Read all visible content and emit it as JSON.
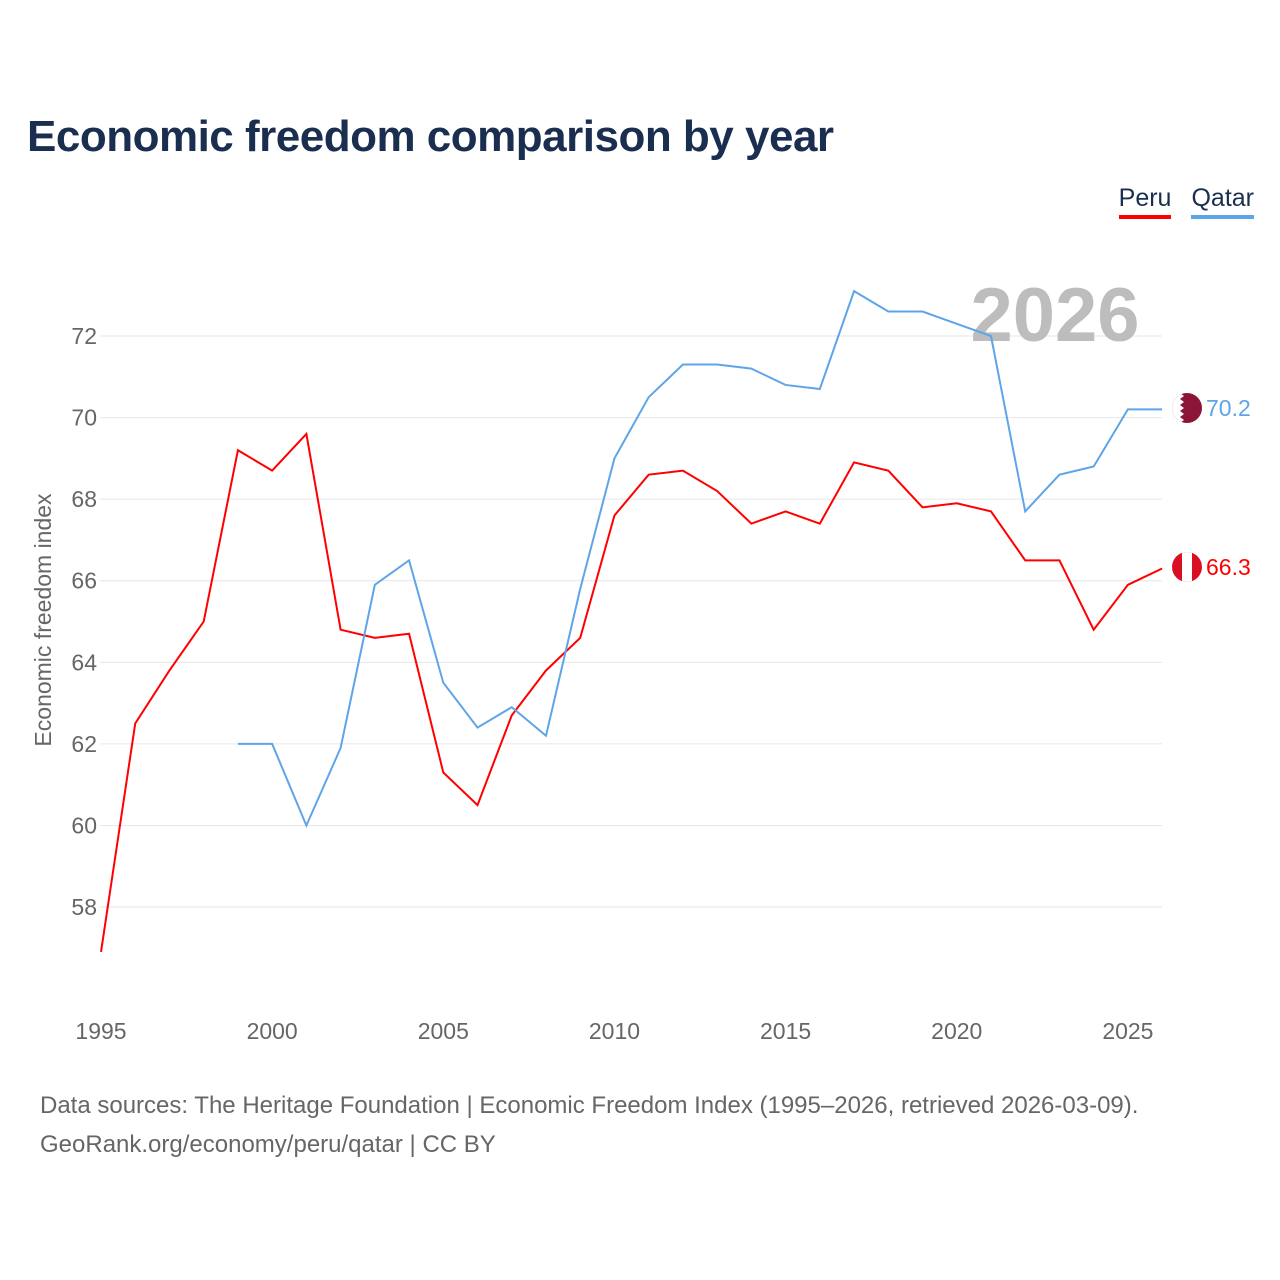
{
  "title": "Economic freedom comparison by year",
  "footer": {
    "line1": "Data sources: The Heritage Foundation | Economic Freedom Index (1995–2026, retrieved 2026-03-09).",
    "line2": "GeoRank.org/economy/peru/qatar | CC BY"
  },
  "chart_data": {
    "type": "line",
    "title": "Economic freedom comparison by year",
    "xlabel": "",
    "ylabel": "Economic freedom index",
    "watermark_year": "2026",
    "xlim": [
      1995,
      2026
    ],
    "ylim": [
      56.9,
      73.1
    ],
    "x_ticks": [
      1995,
      2000,
      2005,
      2010,
      2015,
      2020,
      2025
    ],
    "y_ticks": [
      58,
      60,
      62,
      64,
      66,
      68,
      70,
      72
    ],
    "grid": true,
    "legend_position": "top-right",
    "series": [
      {
        "name": "Peru",
        "color": "#ff0000",
        "end_label": "66.3",
        "x": [
          1995,
          1996,
          1997,
          1998,
          1999,
          2000,
          2001,
          2002,
          2003,
          2004,
          2005,
          2006,
          2007,
          2008,
          2009,
          2010,
          2011,
          2012,
          2013,
          2014,
          2015,
          2016,
          2017,
          2018,
          2019,
          2020,
          2021,
          2022,
          2023,
          2024,
          2025,
          2026
        ],
        "values": [
          56.9,
          62.5,
          63.8,
          65.0,
          69.2,
          68.7,
          69.6,
          64.8,
          64.6,
          64.7,
          61.3,
          60.5,
          62.7,
          63.8,
          64.6,
          67.6,
          68.6,
          68.7,
          68.2,
          67.4,
          67.7,
          67.4,
          68.9,
          68.7,
          67.8,
          67.9,
          67.7,
          66.5,
          66.5,
          64.8,
          65.9,
          66.3
        ]
      },
      {
        "name": "Qatar",
        "color": "#5ea5e8",
        "end_label": "70.2",
        "x": [
          1999,
          2000,
          2001,
          2002,
          2003,
          2004,
          2005,
          2006,
          2007,
          2008,
          2009,
          2010,
          2011,
          2012,
          2013,
          2014,
          2015,
          2016,
          2017,
          2018,
          2019,
          2020,
          2021,
          2022,
          2023,
          2024,
          2025,
          2026
        ],
        "values": [
          62.0,
          62.0,
          60.0,
          61.9,
          65.9,
          66.5,
          63.5,
          62.4,
          62.9,
          62.2,
          65.8,
          69.0,
          70.5,
          71.3,
          71.3,
          71.2,
          70.8,
          70.7,
          73.1,
          72.6,
          72.6,
          72.3,
          72.0,
          67.7,
          68.6,
          68.8,
          70.2,
          70.2
        ]
      }
    ]
  }
}
